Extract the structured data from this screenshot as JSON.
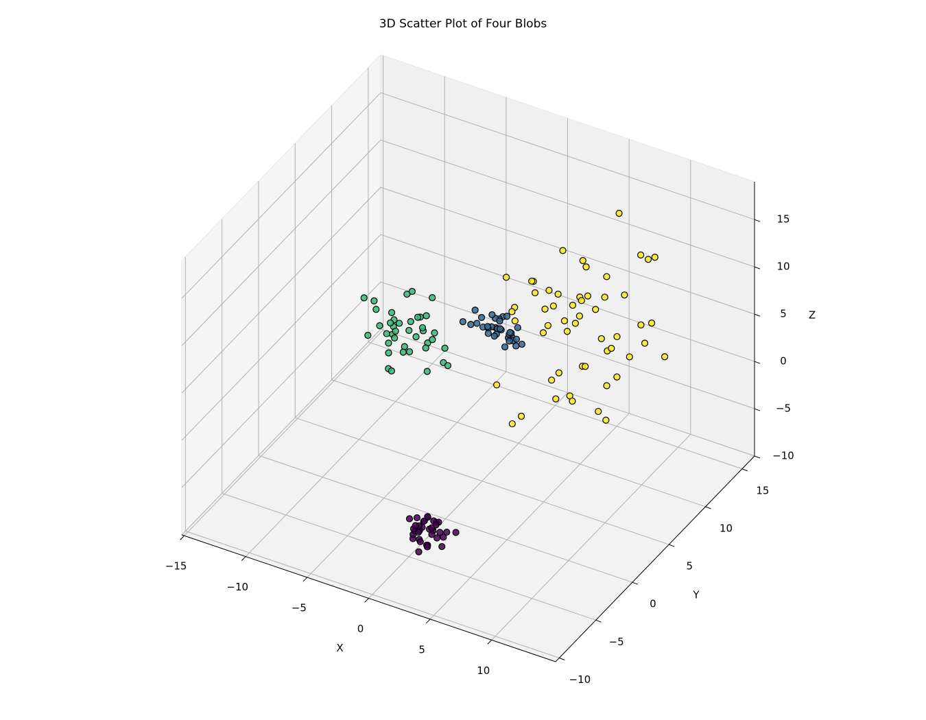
{
  "chart_data": {
    "type": "scatter3d",
    "title": "3D Scatter Plot of Four Blobs",
    "xlabel": "X",
    "ylabel": "Y",
    "zlabel": "Z",
    "xlim": [
      -15.2,
      15.2
    ],
    "ylim": [
      -10.5,
      16.7
    ],
    "zlim": [
      -10,
      19
    ],
    "xticks": [
      {
        "value": -15,
        "label": "−15"
      },
      {
        "value": -10,
        "label": "−10"
      },
      {
        "value": -5,
        "label": "−5"
      },
      0,
      5,
      10
    ],
    "yticks": [
      {
        "value": -10,
        "label": "−10"
      },
      {
        "value": -5,
        "label": "−5"
      },
      0,
      5,
      10,
      15
    ],
    "zticks": [
      {
        "value": -10,
        "label": "−10"
      },
      {
        "value": -5,
        "label": "−5"
      },
      0,
      5,
      10,
      15
    ],
    "grid": true,
    "series": [
      {
        "color": "#440154",
        "x": [
          1.2,
          2.0,
          0.8,
          1.9,
          1.5,
          2.6,
          0.4,
          1.1,
          2.3,
          1.7,
          0.9,
          1.4,
          2.8,
          0.2,
          1.6,
          2.1,
          1.0,
          1.8,
          0.6,
          2.4,
          1.3,
          3.1,
          0.7,
          1.9,
          1.5,
          2.2,
          0.3,
          1.2,
          2.7,
          1.6,
          0.9,
          3.4,
          1.1,
          2.0,
          1.4
        ],
        "y": [
          -5.2,
          -4.6,
          -5.8,
          -4.9,
          -5.5,
          -4.2,
          -5.1,
          -6.0,
          -4.8,
          -5.3,
          -4.4,
          -5.9,
          -5.0,
          -4.7,
          -6.3,
          -5.4,
          -4.1,
          -5.6,
          -4.9,
          -5.2,
          -3.8,
          -5.7,
          -6.1,
          -4.5,
          -5.0,
          -5.9,
          -4.6,
          -3.9,
          -5.3,
          -6.4,
          -5.1,
          -4.3,
          -5.5,
          -6.8,
          -4.8
        ],
        "z": [
          -6.2,
          -5.8,
          -7.1,
          -6.5,
          -5.2,
          -6.9,
          -7.4,
          -6.0,
          -5.5,
          -7.8,
          -6.3,
          -5.9,
          -6.7,
          -7.2,
          -5.0,
          -6.4,
          -6.1,
          -7.5,
          -5.7,
          -6.8,
          -6.6,
          -7.0,
          -4.8,
          -6.2,
          -8.3,
          -5.4,
          -6.9,
          -7.3,
          -6.0,
          -5.6,
          -7.7,
          -6.5,
          -8.6,
          -6.1,
          -5.3
        ]
      },
      {
        "color": "#35b779",
        "x": [
          -6.0,
          -8.2,
          -4.9,
          -7.1,
          -5.5,
          -9.0,
          -6.6,
          -3.8,
          -7.8,
          -5.2,
          -6.9,
          -4.4,
          -8.6,
          -6.2,
          -5.8,
          -7.4,
          -3.5,
          -6.4,
          -9.4,
          -5.0,
          -7.0,
          -4.7,
          -6.8,
          -8.0,
          -5.6,
          -6.1,
          -4.1,
          -7.6,
          -5.3,
          -6.5,
          -8.8,
          -5.9,
          -3.2,
          -7.3,
          -6.3,
          -4.6,
          -7.9,
          -5.4,
          -6.7,
          -2.6
        ],
        "y": [
          5.1,
          4.3,
          5.8,
          4.9,
          6.2,
          4.0,
          5.5,
          4.6,
          6.0,
          5.3,
          3.8,
          5.9,
          4.7,
          6.4,
          5.0,
          4.4,
          5.6,
          3.5,
          5.2,
          6.6,
          4.8,
          5.4,
          3.9,
          6.1,
          4.5,
          5.7,
          4.2,
          5.0,
          6.3,
          4.1,
          5.8,
          3.6,
          5.3,
          4.9,
          6.8,
          4.6,
          5.5,
          3.3,
          6.0,
          4.7
        ],
        "z": [
          3.2,
          5.1,
          1.8,
          4.0,
          2.5,
          6.2,
          0.9,
          3.6,
          2.1,
          4.8,
          -0.2,
          3.0,
          5.5,
          1.4,
          4.3,
          2.8,
          0.5,
          3.9,
          1.1,
          5.9,
          2.2,
          -0.8,
          4.6,
          3.4,
          1.6,
          6.8,
          2.9,
          0.2,
          4.1,
          3.7,
          1.9,
          5.2,
          2.4,
          -1.5,
          3.1,
          4.5,
          0.7,
          2.6,
          6.0,
          1.3
        ]
      },
      {
        "color": "#31688e",
        "x": [
          1.0,
          1.8,
          0.3,
          2.2,
          1.4,
          -0.5,
          2.7,
          0.8,
          1.6,
          -0.1,
          2.0,
          1.2,
          0.5,
          3.0,
          1.5,
          -0.8,
          2.4,
          0.9,
          1.7,
          0.1,
          2.9,
          1.3,
          0.6,
          1.9,
          -0.3,
          2.5,
          1.1,
          0.4,
          3.3,
          1.6,
          0.2,
          2.1,
          1.0,
          -1.2,
          1.8
        ],
        "y": [
          5.2,
          4.6,
          5.8,
          4.9,
          5.5,
          4.3,
          5.1,
          6.0,
          4.4,
          5.3,
          5.7,
          4.8,
          5.0,
          4.2,
          6.2,
          5.4,
          4.7,
          5.9,
          4.1,
          5.6,
          5.0,
          4.5,
          6.1,
          5.2,
          4.8,
          5.5,
          4.0,
          5.7,
          4.9,
          6.3,
          4.6,
          5.3,
          5.8,
          4.4,
          5.1
        ],
        "z": [
          6.5,
          7.1,
          5.8,
          6.2,
          7.6,
          6.9,
          5.4,
          6.7,
          7.3,
          6.0,
          5.6,
          7.9,
          6.4,
          6.8,
          5.2,
          7.4,
          6.1,
          6.6,
          7.0,
          5.9,
          7.5,
          6.3,
          5.5,
          8.1,
          6.7,
          5.7,
          6.9,
          7.2,
          6.0,
          5.3,
          7.7,
          6.4,
          5.9,
          6.8,
          4.9
        ]
      },
      {
        "color": "#fde725",
        "x": [
          4.8,
          8.1,
          2.3,
          6.5,
          10.2,
          3.7,
          5.9,
          1.4,
          7.6,
          9.3,
          4.1,
          6.8,
          0.6,
          11.0,
          5.3,
          3.0,
          8.7,
          6.1,
          2.6,
          9.8,
          4.5,
          7.2,
          1.9,
          5.7,
          10.6,
          3.4,
          8.4,
          6.3,
          0.9,
          7.9,
          4.2,
          9.1,
          5.0,
          2.8,
          11.5,
          6.6,
          3.9,
          8.0,
          5.5,
          1.6,
          7.4,
          9.6,
          4.7,
          6.0,
          2.1,
          10.9,
          5.2,
          7.7,
          3.3,
          8.9,
          6.4,
          12.0,
          4.4,
          0.3,
          7.1
        ],
        "y": [
          8.2,
          6.9,
          9.5,
          7.4,
          10.1,
          5.8,
          8.8,
          7.1,
          9.0,
          6.3,
          10.5,
          7.8,
          8.5,
          9.7,
          6.6,
          11.0,
          7.5,
          9.2,
          6.0,
          8.0,
          10.8,
          7.0,
          8.6,
          5.5,
          9.9,
          8.3,
          7.2,
          10.3,
          6.8,
          9.4,
          7.7,
          11.4,
          6.1,
          8.9,
          9.3,
          5.9,
          7.6,
          10.0,
          8.1,
          6.4,
          9.6,
          7.3,
          10.7,
          8.7,
          5.6,
          8.4,
          7.9,
          9.1,
          6.7,
          10.2,
          7.0,
          9.8,
          8.0,
          6.5,
          11.8
        ],
        "z": [
          6.5,
          10.2,
          3.1,
          8.4,
          5.0,
          12.1,
          1.7,
          7.3,
          9.6,
          -0.5,
          6.0,
          13.4,
          4.4,
          7.8,
          2.5,
          10.9,
          5.6,
          8.9,
          -2.8,
          11.6,
          6.8,
          3.7,
          9.1,
          0.8,
          14.2,
          5.3,
          7.0,
          -4.1,
          10.5,
          4.0,
          8.2,
          12.8,
          2.0,
          6.3,
          15.3,
          1.2,
          9.8,
          4.8,
          -1.6,
          7.5,
          11.2,
          3.4,
          6.6,
          13.0,
          -3.5,
          8.6,
          5.8,
          0.2,
          10.0,
          2.9,
          7.9,
          4.6,
          9.3,
          -0.9,
          16.0
        ]
      }
    ]
  }
}
